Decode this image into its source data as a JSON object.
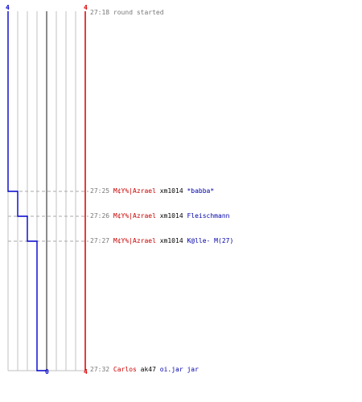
{
  "colors": {
    "team_blue": "#0000cc",
    "team_red": "#dd0000",
    "grid": "#c0c0c0",
    "time": "#777777",
    "killer": "#cc0000",
    "victim": "#0000aa"
  },
  "score_axis": {
    "blue_top": "4",
    "red_top": "4",
    "blue_bottom": "0",
    "red_bottom": "4"
  },
  "chart_data": {
    "type": "line",
    "series": [
      {
        "name": "",
        "color": "#0000cc",
        "values": [
          4,
          3,
          2,
          1,
          0
        ]
      },
      {
        "name": "",
        "color": "#dd0000",
        "values": [
          4,
          4,
          4,
          4,
          4
        ]
      }
    ]
  },
  "events": [
    {
      "time": "27:18",
      "killer": "",
      "weapon": "",
      "victim": "",
      "note": "round started"
    },
    {
      "time": "27:25",
      "killer": "M¢Y%|Azrael",
      "weapon": "xm1014",
      "victim": "*babba*",
      "note": ""
    },
    {
      "time": "27:26",
      "killer": "M¢Y%|Azrael",
      "weapon": "xm1014",
      "victim": "Fleischmann",
      "note": ""
    },
    {
      "time": "27:27",
      "killer": "M¢Y%|Azrael",
      "weapon": "xm1014",
      "victim": "K@lle- M(27)",
      "note": ""
    },
    {
      "time": "27:32",
      "killer": "Carlos",
      "weapon": "ak47",
      "victim": "oi.jar jar",
      "note": ""
    }
  ]
}
